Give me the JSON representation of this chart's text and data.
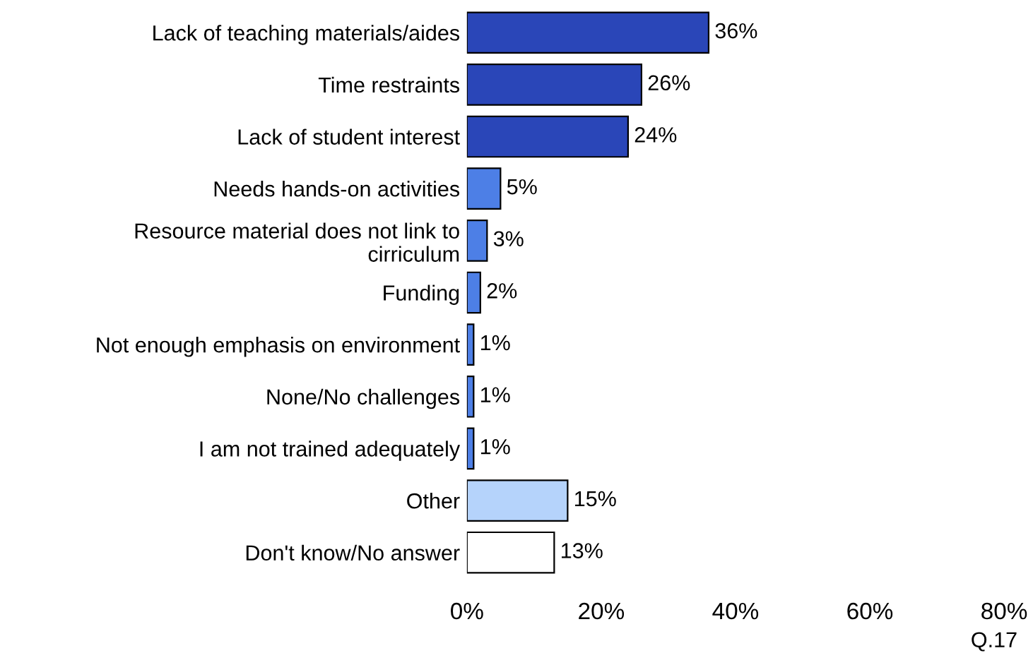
{
  "chart_data": {
    "type": "bar",
    "orientation": "horizontal",
    "categories": [
      "Lack of teaching materials/aides",
      "Time restraints",
      "Lack of student interest",
      "Needs hands-on activities",
      "Resource material does not link to\ncirriculum",
      "Funding",
      "Not enough emphasis on environment",
      "None/No challenges",
      "I am not trained adequately",
      "Other",
      "Don't know/No answer"
    ],
    "values": [
      36,
      26,
      24,
      5,
      3,
      2,
      1,
      1,
      1,
      15,
      13
    ],
    "colors": [
      "#2a46b8",
      "#2a46b8",
      "#2a46b8",
      "#4d7fe6",
      "#4d7fe6",
      "#4d7fe6",
      "#4d7fe6",
      "#4d7fe6",
      "#4d7fe6",
      "#b5d3fb",
      "#ffffff"
    ],
    "value_labels": [
      "36%",
      "26%",
      "24%",
      "5%",
      "3%",
      "2%",
      "1%",
      "1%",
      "1%",
      "15%",
      "13%"
    ],
    "xlim": [
      0,
      80
    ],
    "xticks": [
      {
        "value": 0,
        "label": "0%"
      },
      {
        "value": 20,
        "label": "20%"
      },
      {
        "value": 40,
        "label": "40%"
      },
      {
        "value": 60,
        "label": "60%"
      },
      {
        "value": 80,
        "label": "80%"
      }
    ],
    "grid": false,
    "legend": false,
    "annotations": [
      "Q.17"
    ]
  }
}
